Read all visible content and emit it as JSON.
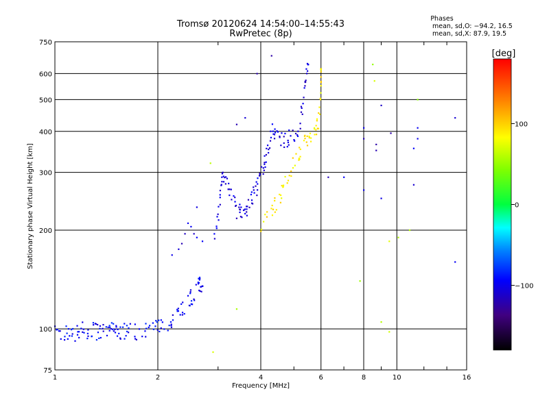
{
  "chart_data": {
    "type": "scatter",
    "title": "Tromsø 20120624 14:54:00–14:55:43",
    "subtitle": "RwPretec (8p)",
    "phases_header": "Phases",
    "phases_o": "mean, sd,O: −94.2, 16.5",
    "phases_x": "mean, sd,X:  87.9, 19.5",
    "xlabel": "Frequency [MHz]",
    "ylabel": "Stationary phase Virtual Height [km]",
    "x_scale": "log",
    "y_scale": "log",
    "xlim": [
      1,
      16
    ],
    "ylim": [
      75,
      750
    ],
    "x_ticks": [
      1,
      2,
      4,
      6,
      8,
      10,
      16
    ],
    "x_tick_labels": [
      "1",
      "2",
      "4",
      "6",
      "8",
      "10",
      "16"
    ],
    "y_ticks": [
      75,
      100,
      200,
      300,
      400,
      500,
      600,
      750
    ],
    "y_tick_labels": [
      "75",
      "100",
      "200",
      "300",
      "400",
      "500",
      "600",
      "750"
    ],
    "grid": true,
    "colorbar": {
      "label": "[deg]",
      "range": [
        -180,
        180
      ],
      "ticks": [
        100,
        0,
        -100
      ],
      "tick_labels": [
        "100",
        "0",
        "−100"
      ]
    },
    "traces": [
      {
        "name_hint": "E-layer trace",
        "phase": -95,
        "points": [
          [
            1.0,
            97
          ],
          [
            1.05,
            96
          ],
          [
            1.1,
            98
          ],
          [
            1.15,
            97
          ],
          [
            1.2,
            99
          ],
          [
            1.25,
            98
          ],
          [
            1.3,
            100
          ],
          [
            1.35,
            97
          ],
          [
            1.4,
            99
          ],
          [
            1.45,
            98
          ],
          [
            1.5,
            100
          ],
          [
            1.55,
            98
          ],
          [
            1.6,
            99
          ],
          [
            1.7,
            98
          ],
          [
            1.8,
            100
          ],
          [
            1.9,
            99
          ],
          [
            2.0,
            101
          ],
          [
            2.1,
            103
          ],
          [
            2.2,
            108
          ],
          [
            2.3,
            113
          ],
          [
            2.4,
            118
          ],
          [
            2.5,
            125
          ],
          [
            2.6,
            130
          ],
          [
            2.65,
            138
          ],
          [
            2.7,
            135
          ]
        ]
      },
      {
        "name_hint": "E-layer oblique",
        "phase": -105,
        "points": [
          [
            2.2,
            168
          ],
          [
            2.3,
            175
          ],
          [
            2.35,
            182
          ],
          [
            2.4,
            195
          ],
          [
            2.45,
            210
          ],
          [
            2.5,
            205
          ],
          [
            2.55,
            195
          ],
          [
            2.6,
            190
          ],
          [
            2.7,
            185
          ]
        ]
      },
      {
        "name_hint": "F-layer O-mode",
        "phase": -105,
        "points": [
          [
            2.9,
            175
          ],
          [
            3.0,
            220
          ],
          [
            3.05,
            260
          ],
          [
            3.1,
            300
          ],
          [
            3.2,
            280
          ],
          [
            3.3,
            250
          ],
          [
            3.4,
            230
          ],
          [
            3.5,
            225
          ],
          [
            3.6,
            230
          ],
          [
            3.7,
            240
          ],
          [
            3.8,
            255
          ],
          [
            3.9,
            270
          ],
          [
            4.0,
            295
          ],
          [
            4.1,
            320
          ],
          [
            4.2,
            360
          ],
          [
            4.3,
            400
          ],
          [
            4.4,
            395
          ],
          [
            4.6,
            375
          ],
          [
            4.8,
            380
          ],
          [
            5.0,
            390
          ],
          [
            5.2,
            420
          ],
          [
            5.3,
            480
          ],
          [
            5.4,
            560
          ],
          [
            5.5,
            640
          ]
        ]
      },
      {
        "name_hint": "F-layer X-mode",
        "phase": 90,
        "points": [
          [
            4.0,
            210
          ],
          [
            4.2,
            225
          ],
          [
            4.4,
            240
          ],
          [
            4.6,
            260
          ],
          [
            4.8,
            290
          ],
          [
            5.0,
            320
          ],
          [
            5.2,
            350
          ],
          [
            5.4,
            375
          ],
          [
            5.6,
            385
          ],
          [
            5.8,
            400
          ],
          [
            5.9,
            430
          ],
          [
            6.0,
            520
          ],
          [
            6.0,
            620
          ]
        ]
      },
      {
        "name_hint": "sporadic points",
        "phase": -110,
        "points": [
          [
            3.9,
            600
          ],
          [
            4.3,
            680
          ],
          [
            3.4,
            420
          ],
          [
            3.6,
            440
          ],
          [
            2.6,
            235
          ],
          [
            8.0,
            410
          ],
          [
            8.0,
            380
          ],
          [
            8.7,
            365
          ],
          [
            9.0,
            480
          ],
          [
            9.6,
            395
          ],
          [
            11.5,
            410
          ],
          [
            11.5,
            380
          ],
          [
            14.8,
            440
          ],
          [
            14.8,
            160
          ],
          [
            7.0,
            290
          ],
          [
            8.0,
            265
          ],
          [
            8.7,
            350
          ],
          [
            9.0,
            250
          ],
          [
            11.2,
            275
          ],
          [
            11.2,
            355
          ],
          [
            6.3,
            290
          ]
        ]
      },
      {
        "name_hint": "sporadic low points",
        "phase": 60,
        "points": [
          [
            8.6,
            570
          ],
          [
            8.5,
            640
          ],
          [
            9.5,
            185
          ],
          [
            10.1,
            190
          ],
          [
            10.9,
            200
          ],
          [
            11.5,
            500
          ],
          [
            7.8,
            140
          ],
          [
            9.0,
            105
          ],
          [
            9.5,
            98
          ],
          [
            2.9,
            85
          ],
          [
            3.4,
            115
          ],
          [
            2.85,
            320
          ]
        ]
      }
    ]
  }
}
